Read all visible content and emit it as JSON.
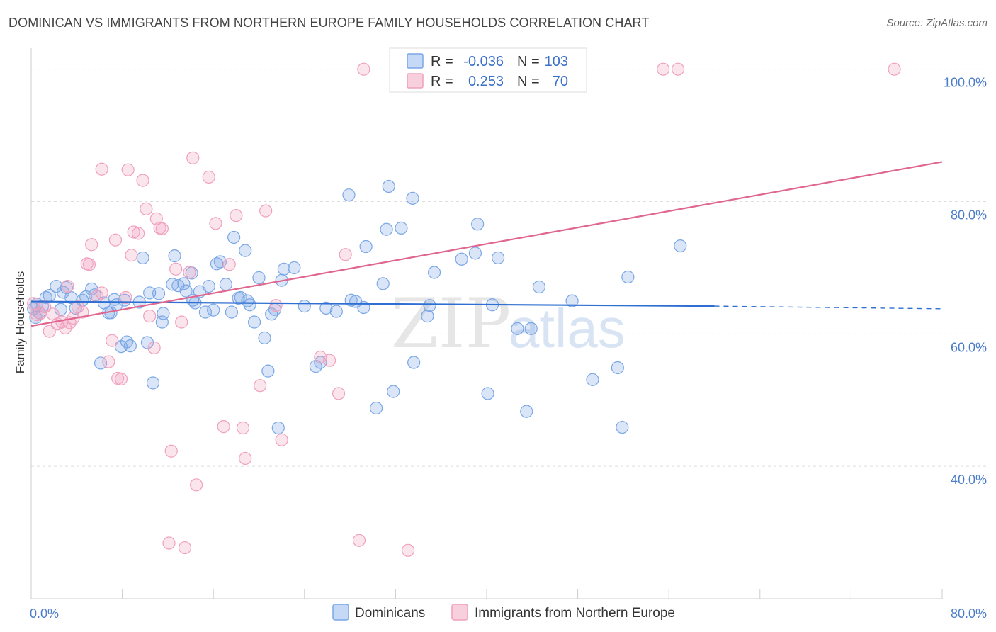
{
  "title": "DOMINICAN VS IMMIGRANTS FROM NORTHERN EUROPE FAMILY HOUSEHOLDS CORRELATION CHART",
  "source": "Source: ZipAtlas.com",
  "watermark": {
    "part1": "ZIP",
    "part2": "atlas"
  },
  "legend": {
    "rows": [
      {
        "r_label": "R =",
        "r_value": "-0.036",
        "n_label": "N =",
        "n_value": "103",
        "color": "#7aa7e6"
      },
      {
        "r_label": "R =",
        "r_value": "0.253",
        "n_label": "N =",
        "n_value": "70",
        "color": "#f0a0bd"
      }
    ]
  },
  "chart_data": {
    "type": "scatter",
    "title": "DOMINICAN VS IMMIGRANTS FROM NORTHERN EUROPE FAMILY HOUSEHOLDS CORRELATION CHART",
    "xlabel": "",
    "ylabel": "Family Households",
    "xlim": [
      0,
      80
    ],
    "ylim": [
      20,
      102
    ],
    "x_tick_labels": [
      {
        "value": 0,
        "label": "0.0%"
      },
      {
        "value": 80,
        "label": "80.0%"
      }
    ],
    "y_tick_labels": [
      {
        "value": 100,
        "label": "100.0%"
      },
      {
        "value": 80,
        "label": "80.0%"
      },
      {
        "value": 60,
        "label": "60.0%"
      },
      {
        "value": 40,
        "label": "40.0%"
      }
    ],
    "grid": "horizontal dashed",
    "legend_position": "top-center",
    "series": [
      {
        "name": "Dominicans",
        "color": "#7aa7e6",
        "line_color": "#2f6fd1",
        "trend": {
          "x0": 0,
          "y0": 64.9,
          "x1": 60,
          "y1": 64.2,
          "dashed_to_x": 80,
          "dashed_to_y": 63.8
        },
        "points": [
          [
            0.2,
            63.8
          ],
          [
            0.4,
            62.5
          ],
          [
            0.5,
            64.5
          ],
          [
            0.7,
            63.2
          ],
          [
            1.0,
            64.2
          ],
          [
            1.3,
            65.5
          ],
          [
            1.6,
            65.8
          ],
          [
            2.2,
            67.2
          ],
          [
            2.6,
            63.7
          ],
          [
            2.8,
            66.3
          ],
          [
            3.1,
            67.0
          ],
          [
            3.5,
            65.5
          ],
          [
            3.9,
            63.9
          ],
          [
            4.5,
            65.1
          ],
          [
            4.8,
            65.6
          ],
          [
            5.3,
            66.8
          ],
          [
            5.6,
            65.9
          ],
          [
            6.1,
            55.6
          ],
          [
            6.4,
            64.7
          ],
          [
            6.8,
            63.2
          ],
          [
            7.0,
            63.2
          ],
          [
            7.3,
            65.2
          ],
          [
            7.5,
            64.4
          ],
          [
            7.9,
            58.1
          ],
          [
            8.2,
            65.1
          ],
          [
            8.4,
            58.8
          ],
          [
            8.7,
            58.2
          ],
          [
            9.5,
            64.8
          ],
          [
            9.8,
            71.5
          ],
          [
            10.2,
            58.7
          ],
          [
            10.4,
            66.2
          ],
          [
            10.7,
            52.6
          ],
          [
            11.2,
            66.1
          ],
          [
            11.6,
            63.1
          ],
          [
            11.5,
            61.8
          ],
          [
            12.4,
            67.5
          ],
          [
            12.6,
            71.8
          ],
          [
            12.9,
            67.3
          ],
          [
            13.4,
            67.6
          ],
          [
            13.6,
            66.5
          ],
          [
            14.1,
            69.2
          ],
          [
            14.2,
            65.1
          ],
          [
            14.4,
            64.7
          ],
          [
            14.8,
            66.4
          ],
          [
            15.3,
            63.3
          ],
          [
            15.6,
            67.2
          ],
          [
            16.0,
            63.6
          ],
          [
            16.3,
            70.6
          ],
          [
            16.6,
            70.9
          ],
          [
            17.1,
            67.5
          ],
          [
            17.6,
            63.3
          ],
          [
            17.8,
            74.6
          ],
          [
            18.2,
            65.4
          ],
          [
            18.4,
            65.5
          ],
          [
            18.8,
            72.6
          ],
          [
            19.0,
            65.0
          ],
          [
            19.2,
            64.4
          ],
          [
            19.6,
            61.8
          ],
          [
            20.0,
            68.5
          ],
          [
            20.5,
            59.4
          ],
          [
            20.8,
            54.4
          ],
          [
            21.1,
            63.0
          ],
          [
            21.4,
            63.7
          ],
          [
            21.7,
            45.8
          ],
          [
            22.0,
            68.1
          ],
          [
            22.2,
            69.8
          ],
          [
            23.1,
            70.0
          ],
          [
            24.0,
            64.2
          ],
          [
            25.0,
            55.1
          ],
          [
            25.4,
            55.7
          ],
          [
            25.9,
            63.9
          ],
          [
            26.8,
            63.4
          ],
          [
            27.9,
            81.0
          ],
          [
            28.1,
            65.1
          ],
          [
            28.5,
            64.9
          ],
          [
            29.2,
            64.0
          ],
          [
            29.4,
            73.2
          ],
          [
            30.3,
            48.8
          ],
          [
            30.9,
            67.6
          ],
          [
            31.2,
            75.8
          ],
          [
            31.4,
            82.3
          ],
          [
            31.8,
            51.3
          ],
          [
            32.5,
            76.0
          ],
          [
            33.5,
            80.5
          ],
          [
            33.6,
            55.7
          ],
          [
            34.8,
            62.7
          ],
          [
            35.0,
            64.3
          ],
          [
            35.4,
            69.3
          ],
          [
            37.8,
            71.3
          ],
          [
            39.0,
            72.2
          ],
          [
            39.2,
            76.6
          ],
          [
            40.1,
            51.0
          ],
          [
            40.5,
            64.4
          ],
          [
            41.0,
            71.5
          ],
          [
            42.7,
            60.8
          ],
          [
            43.5,
            48.3
          ],
          [
            43.9,
            60.8
          ],
          [
            44.6,
            67.1
          ],
          [
            47.5,
            65.0
          ],
          [
            49.3,
            53.1
          ],
          [
            51.5,
            54.9
          ],
          [
            51.9,
            45.9
          ],
          [
            52.4,
            68.6
          ],
          [
            57.0,
            73.3
          ]
        ]
      },
      {
        "name": "Immigrants from Northern Europe",
        "color": "#f0a0bd",
        "line_color": "#e0668f",
        "trend": {
          "x0": 0,
          "y0": 61.2,
          "x1": 80,
          "y1": 86.0
        },
        "points": [
          [
            0.2,
            64.6
          ],
          [
            0.5,
            62.9
          ],
          [
            0.8,
            63.1
          ],
          [
            1.2,
            64.1
          ],
          [
            1.6,
            60.4
          ],
          [
            1.9,
            63.0
          ],
          [
            2.3,
            61.5
          ],
          [
            2.7,
            61.8
          ],
          [
            3.0,
            60.9
          ],
          [
            3.2,
            67.2
          ],
          [
            3.4,
            61.7
          ],
          [
            3.7,
            62.4
          ],
          [
            4.1,
            64.1
          ],
          [
            4.5,
            63.3
          ],
          [
            4.9,
            70.6
          ],
          [
            5.1,
            70.5
          ],
          [
            5.3,
            73.5
          ],
          [
            5.8,
            65.7
          ],
          [
            6.2,
            84.9
          ],
          [
            6.2,
            66.2
          ],
          [
            6.8,
            55.8
          ],
          [
            7.1,
            59.0
          ],
          [
            7.4,
            74.2
          ],
          [
            7.6,
            53.3
          ],
          [
            7.9,
            53.2
          ],
          [
            8.3,
            65.5
          ],
          [
            8.5,
            84.8
          ],
          [
            8.8,
            71.9
          ],
          [
            9.0,
            75.4
          ],
          [
            9.4,
            75.2
          ],
          [
            9.8,
            83.2
          ],
          [
            10.1,
            78.9
          ],
          [
            10.4,
            62.7
          ],
          [
            10.8,
            57.9
          ],
          [
            11.0,
            77.4
          ],
          [
            11.3,
            76.0
          ],
          [
            11.5,
            75.9
          ],
          [
            12.3,
            42.3
          ],
          [
            12.1,
            28.4
          ],
          [
            12.7,
            69.8
          ],
          [
            13.2,
            61.8
          ],
          [
            13.5,
            27.7
          ],
          [
            13.9,
            69.3
          ],
          [
            14.2,
            86.6
          ],
          [
            14.5,
            37.2
          ],
          [
            15.6,
            83.7
          ],
          [
            16.2,
            76.7
          ],
          [
            16.9,
            46.0
          ],
          [
            17.4,
            70.5
          ],
          [
            18.0,
            77.9
          ],
          [
            18.6,
            45.8
          ],
          [
            18.8,
            41.2
          ],
          [
            20.1,
            52.2
          ],
          [
            20.6,
            78.6
          ],
          [
            21.5,
            64.3
          ],
          [
            22.0,
            44.0
          ],
          [
            25.4,
            56.5
          ],
          [
            26.2,
            56.0
          ],
          [
            27.0,
            51.0
          ],
          [
            27.6,
            72.0
          ],
          [
            28.8,
            28.8
          ],
          [
            29.2,
            100.0
          ],
          [
            33.1,
            27.3
          ],
          [
            55.5,
            100.0
          ],
          [
            56.8,
            100.0
          ],
          [
            75.8,
            100.0
          ]
        ]
      }
    ]
  }
}
